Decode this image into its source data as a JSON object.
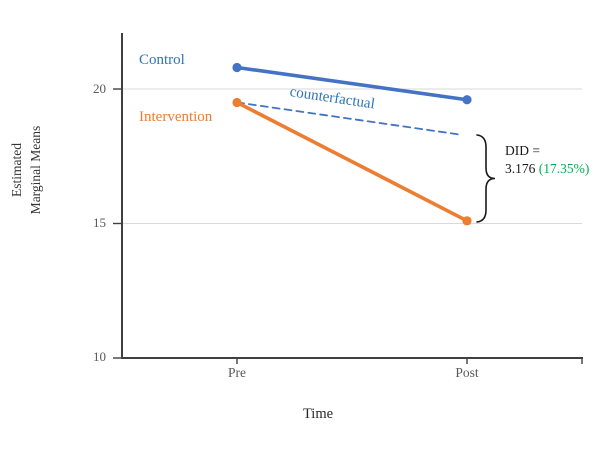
{
  "figure": {
    "labels": {
      "control": "Control",
      "intervention": "Intervention",
      "counterfactual": "counterfactual"
    },
    "annotation": {
      "did_label": "DID =",
      "did_value": "3.176",
      "did_percent": "(17.35%)"
    },
    "axes": {
      "x_title": "Time",
      "y_title_line1": "Estimated",
      "y_title_line2": "Marginal Means"
    }
  },
  "colors": {
    "control_line": "#4472C4",
    "intervention_line": "#ED7D31",
    "counterfactual_line": "#4472C4",
    "control_label": "#2E75B6",
    "intervention_label": "#ED7D31",
    "counterfactual_label": "#2E75B6",
    "did_percent_green": "#00B050",
    "axis": "#404040",
    "gridline": "#D9D9D9",
    "tick_text": "#595959"
  },
  "chart_data": {
    "type": "line",
    "categories": [
      "Pre",
      "Post"
    ],
    "series": [
      {
        "name": "Control",
        "values": [
          20.8,
          19.6
        ],
        "color": "#4472C4",
        "dashed": false
      },
      {
        "name": "Intervention",
        "values": [
          19.5,
          15.1
        ],
        "color": "#ED7D31",
        "dashed": false
      },
      {
        "name": "Counterfactual",
        "values": [
          19.5,
          18.3
        ],
        "color": "#4472C4",
        "dashed": true
      }
    ],
    "yticks": [
      10,
      15,
      20
    ],
    "ylim": [
      10,
      22.1
    ],
    "xlabel": "Time",
    "ylabel": "Estimated Marginal Means",
    "grid": "horizontal",
    "legend_position": "inline-labels",
    "annotations": [
      {
        "text": "DID = 3.176 (17.35%)",
        "between": "counterfactual Post and Intervention Post"
      }
    ]
  }
}
